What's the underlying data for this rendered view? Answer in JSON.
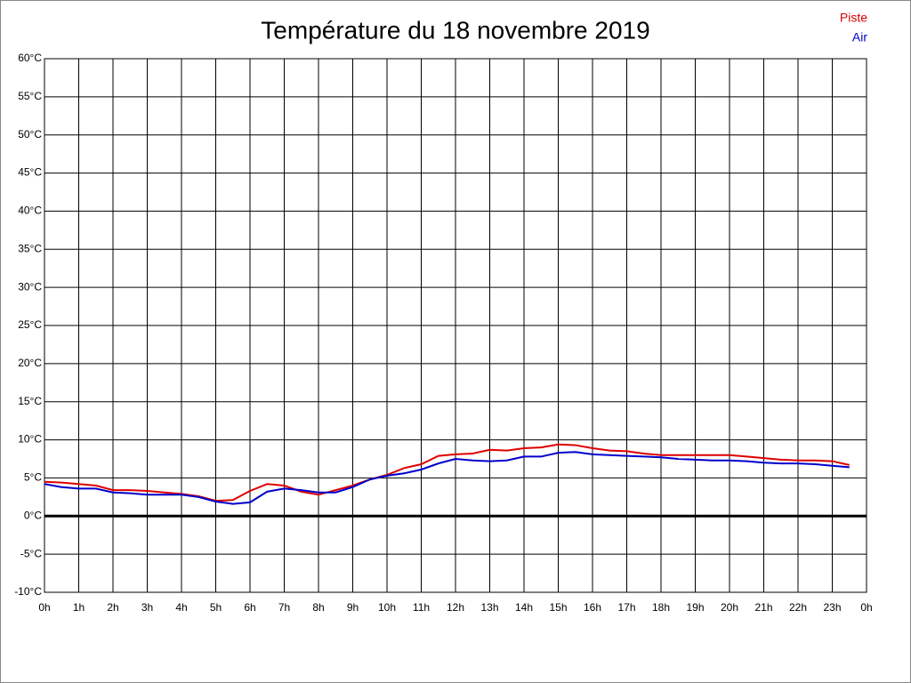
{
  "chart_data": {
    "type": "line",
    "title": "Température du 18 novembre 2019",
    "x": [
      0,
      0.5,
      1,
      1.5,
      2,
      2.5,
      3,
      3.5,
      4,
      4.5,
      5,
      5.5,
      6,
      6.5,
      7,
      7.5,
      8,
      8.5,
      9,
      9.5,
      10,
      10.5,
      11,
      11.5,
      12,
      12.5,
      13,
      13.5,
      14,
      14.5,
      15,
      15.5,
      16,
      16.5,
      17,
      17.5,
      18,
      18.5,
      19,
      19.5,
      20,
      20.5,
      21,
      21.5,
      22,
      22.5,
      23,
      23.5
    ],
    "series": [
      {
        "name": "Piste",
        "color": "#dd0000",
        "values": [
          4.5,
          4.4,
          4.2,
          4.0,
          3.4,
          3.4,
          3.3,
          3.1,
          2.9,
          2.6,
          2.0,
          2.1,
          3.3,
          4.2,
          4.0,
          3.2,
          2.8,
          3.4,
          4.0,
          4.8,
          5.4,
          6.3,
          6.8,
          7.9,
          8.1,
          8.2,
          8.7,
          8.6,
          8.9,
          9.0,
          9.4,
          9.3,
          8.9,
          8.6,
          8.5,
          8.2,
          8.0,
          8.0,
          8.0,
          8.0,
          8.0,
          7.8,
          7.6,
          7.4,
          7.3,
          7.3,
          7.2,
          6.7
        ]
      },
      {
        "name": "Air",
        "color": "#0000cc",
        "values": [
          4.2,
          3.8,
          3.6,
          3.6,
          3.1,
          3.0,
          2.8,
          2.8,
          2.8,
          2.5,
          1.9,
          1.6,
          1.8,
          3.2,
          3.6,
          3.4,
          3.1,
          3.1,
          3.8,
          4.8,
          5.3,
          5.6,
          6.1,
          6.9,
          7.5,
          7.3,
          7.2,
          7.3,
          7.8,
          7.8,
          8.3,
          8.4,
          8.1,
          8.0,
          7.9,
          7.8,
          7.7,
          7.5,
          7.4,
          7.3,
          7.3,
          7.2,
          7.0,
          6.9,
          6.9,
          6.8,
          6.6,
          6.4
        ]
      }
    ],
    "xlim": [
      0,
      24
    ],
    "xticks": [
      {
        "value": 0,
        "label": "0h"
      },
      {
        "value": 1,
        "label": "1h"
      },
      {
        "value": 2,
        "label": "2h"
      },
      {
        "value": 3,
        "label": "3h"
      },
      {
        "value": 4,
        "label": "4h"
      },
      {
        "value": 5,
        "label": "5h"
      },
      {
        "value": 6,
        "label": "6h"
      },
      {
        "value": 7,
        "label": "7h"
      },
      {
        "value": 8,
        "label": "8h"
      },
      {
        "value": 9,
        "label": "9h"
      },
      {
        "value": 10,
        "label": "10h"
      },
      {
        "value": 11,
        "label": "11h"
      },
      {
        "value": 12,
        "label": "12h"
      },
      {
        "value": 13,
        "label": "13h"
      },
      {
        "value": 14,
        "label": "14h"
      },
      {
        "value": 15,
        "label": "15h"
      },
      {
        "value": 16,
        "label": "16h"
      },
      {
        "value": 17,
        "label": "17h"
      },
      {
        "value": 18,
        "label": "18h"
      },
      {
        "value": 19,
        "label": "19h"
      },
      {
        "value": 20,
        "label": "20h"
      },
      {
        "value": 21,
        "label": "21h"
      },
      {
        "value": 22,
        "label": "22h"
      },
      {
        "value": 23,
        "label": "23h"
      },
      {
        "value": 24,
        "label": "0h"
      }
    ],
    "ylim": [
      -10,
      60
    ],
    "yticks": [
      {
        "value": 60,
        "label": "60°C"
      },
      {
        "value": 55,
        "label": "55°C"
      },
      {
        "value": 50,
        "label": "50°C"
      },
      {
        "value": 45,
        "label": "45°C"
      },
      {
        "value": 40,
        "label": "40°C"
      },
      {
        "value": 35,
        "label": "35°C"
      },
      {
        "value": 30,
        "label": "30°C"
      },
      {
        "value": 25,
        "label": "25°C"
      },
      {
        "value": 20,
        "label": "20°C"
      },
      {
        "value": 15,
        "label": "15°C"
      },
      {
        "value": 10,
        "label": "10°C"
      },
      {
        "value": 5,
        "label": "5°C"
      },
      {
        "value": 0,
        "label": "0°C"
      },
      {
        "value": -5,
        "label": "-5°C"
      },
      {
        "value": -10,
        "label": "-10°C"
      }
    ],
    "grid": true,
    "legend": "top-right"
  }
}
